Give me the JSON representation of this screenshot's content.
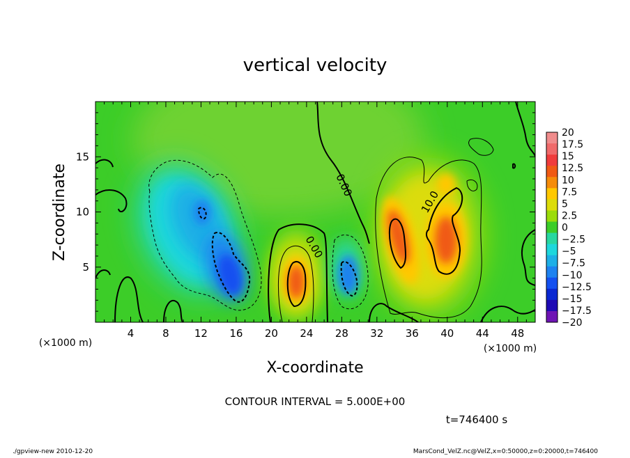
{
  "chart_data": {
    "type": "heatmap",
    "title": "vertical velocity",
    "xlabel": "X-coordinate",
    "ylabel": "Z-coordinate",
    "x_unit": "(×1000 m)",
    "y_unit": "(×1000 m)",
    "xlim": [
      0,
      50
    ],
    "ylim": [
      0,
      20
    ],
    "x_ticks": [
      4,
      8,
      12,
      16,
      20,
      24,
      28,
      32,
      36,
      40,
      44,
      48
    ],
    "y_ticks": [
      5,
      10,
      15
    ],
    "colorbar": {
      "labels": [
        "20",
        "17.5",
        "15",
        "12.5",
        "10",
        "7.5",
        "5",
        "2.5",
        "0",
        "−2.5",
        "−5",
        "−7.5",
        "−10",
        "−12.5",
        "−15",
        "−17.5",
        "−20"
      ],
      "colors": [
        "#f08c8c",
        "#f06a6a",
        "#f03c3c",
        "#f05a14",
        "#f58c0a",
        "#ffc800",
        "#dcdc0a",
        "#9bdc0a",
        "#3ccd28",
        "#28d7a0",
        "#1ed7dc",
        "#1eafe6",
        "#1e82f0",
        "#1450f0",
        "#0a28d2",
        "#1e0ab4",
        "#6e14b4"
      ]
    },
    "contour_labels": [
      "0.00",
      "0.00",
      "10.0"
    ],
    "contour_interval": "CONTOUR INTERVAL = 5.000E+00",
    "time_label": "t=746400 s",
    "footer_left": "./gpview-new  2010-12-20",
    "footer_right": "MarsCond_VelZ.nc@VelZ,x=0:50000,z=0:20000,t=746400",
    "features": [
      {
        "sign": "neg",
        "x": 11,
        "z": 9.5,
        "peak": -11
      },
      {
        "sign": "neg",
        "x": 15.5,
        "z": 4.5,
        "peak": -13
      },
      {
        "sign": "neg",
        "x": 17,
        "z": 11.5,
        "peak": -6
      },
      {
        "sign": "pos",
        "x": 23,
        "z": 3.8,
        "peak": 13
      },
      {
        "sign": "neg",
        "x": 28.5,
        "z": 4,
        "peak": -9
      },
      {
        "sign": "pos",
        "x": 35,
        "z": 7,
        "peak": 12
      },
      {
        "sign": "pos",
        "x": 40,
        "z": 7,
        "peak": 13
      },
      {
        "sign": "pos",
        "x": 38.5,
        "z": 10.5,
        "peak": 8
      }
    ]
  }
}
